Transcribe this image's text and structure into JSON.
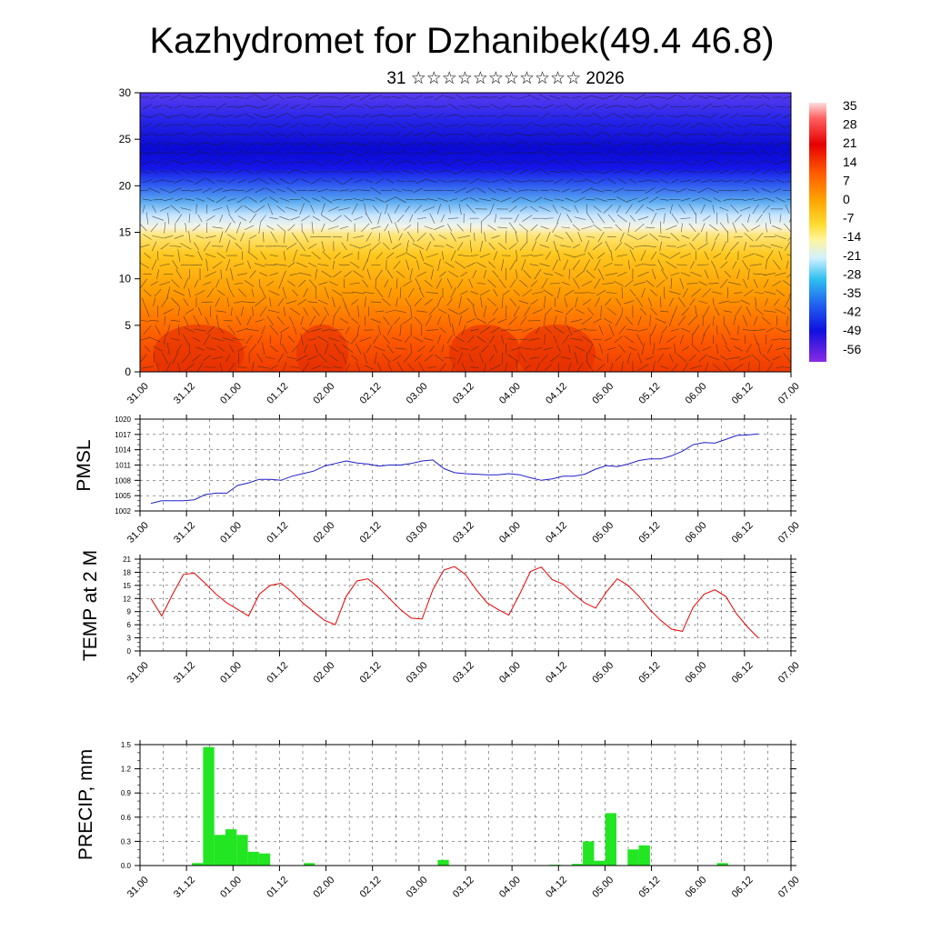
{
  "title": "Kazhydromet for Dzhanibek(49.4 46.8)",
  "subtitle": "31 ☆☆☆☆☆☆☆☆☆☆☆ 2026",
  "time_ticks": [
    "31.00",
    "31.12",
    "01.00",
    "01.12",
    "02.00",
    "02.12",
    "03.00",
    "03.12",
    "04.00",
    "04.12",
    "05.00",
    "05.12",
    "06.00",
    "06.12",
    "07.00"
  ],
  "colors": {
    "pmsl_line": "#1f1fc8",
    "temp_line": "#e60000",
    "precip_bar": "#22e622",
    "grid": "#000000"
  },
  "chart_data": [
    {
      "type": "heatmap",
      "name": "cross-section",
      "title": "",
      "xlabel": "time",
      "ylabel": "level",
      "ylim": [
        0,
        30
      ],
      "y_ticks": [
        0,
        5,
        10,
        15,
        20,
        25,
        30
      ],
      "colorbar": {
        "labels": [
          "35",
          "28",
          "21",
          "14",
          "7",
          "0",
          "-7",
          "-14",
          "-21",
          "-28",
          "-35",
          "-42",
          "-49",
          "-56"
        ],
        "range": [
          -60,
          38
        ]
      },
      "description_levels": [
        {
          "level": 0,
          "value": 24
        },
        {
          "level": 5,
          "value": 14
        },
        {
          "level": 10,
          "value": 4
        },
        {
          "level": 15,
          "value": -12
        },
        {
          "level": 20,
          "value": -38
        },
        {
          "level": 25,
          "value": -54
        },
        {
          "level": 30,
          "value": -52
        }
      ]
    },
    {
      "type": "line",
      "name": "PMSL",
      "ylabel": "PMSL",
      "ylim": [
        1002,
        1020
      ],
      "y_ticks": [
        1002,
        1005,
        1008,
        1011,
        1014,
        1017,
        1020
      ],
      "x": [
        0,
        1,
        2,
        3,
        4,
        5,
        6,
        7,
        8,
        9,
        10,
        11,
        12,
        13,
        14,
        15,
        16,
        17,
        18,
        19,
        20,
        21,
        22,
        23,
        24,
        25,
        26,
        27,
        28,
        29,
        30,
        31,
        32,
        33,
        34,
        35,
        36,
        37,
        38,
        39,
        40,
        41,
        42,
        43,
        44,
        45,
        46,
        47,
        48,
        49,
        50,
        51,
        52,
        53,
        54,
        55,
        56
      ],
      "values": [
        1003.5,
        1004,
        1004,
        1004,
        1004.2,
        1005.2,
        1005.5,
        1005.5,
        1007,
        1007.5,
        1008.2,
        1008.2,
        1008,
        1008.8,
        1009.3,
        1009.8,
        1010.8,
        1011.3,
        1011.8,
        1011.4,
        1011.2,
        1010.8,
        1011,
        1011,
        1011.3,
        1011.8,
        1012,
        1010.3,
        1009.5,
        1009.3,
        1009.2,
        1009.1,
        1009.1,
        1009.3,
        1009.1,
        1008.5,
        1008,
        1008.3,
        1008.8,
        1008.8,
        1009.2,
        1010.2,
        1010.9,
        1010.7,
        1011.2,
        1011.9,
        1012.2,
        1012.2,
        1012.8,
        1013.7,
        1015,
        1015.4,
        1015.3,
        1016,
        1016.8,
        1016.9,
        1017.1
      ]
    },
    {
      "type": "line",
      "name": "TEMP at 2 M",
      "ylabel": "TEMP at 2 M",
      "ylim": [
        0,
        21
      ],
      "y_ticks": [
        0,
        3,
        6,
        9,
        12,
        15,
        18,
        21
      ],
      "x": [
        0,
        1,
        2,
        3,
        4,
        5,
        6,
        7,
        8,
        9,
        10,
        11,
        12,
        13,
        14,
        15,
        16,
        17,
        18,
        19,
        20,
        21,
        22,
        23,
        24,
        25,
        26,
        27,
        28,
        29,
        30,
        31,
        32,
        33,
        34,
        35,
        36,
        37,
        38,
        39,
        40,
        41,
        42,
        43,
        44,
        45,
        46,
        47,
        48,
        49,
        50,
        51,
        52,
        53,
        54,
        55,
        56
      ],
      "values": [
        12,
        8,
        13,
        17.5,
        17.8,
        15.5,
        13,
        11,
        9.5,
        8,
        13,
        15,
        15.5,
        13.5,
        11,
        9,
        7,
        6,
        12.5,
        16,
        16.5,
        14.5,
        12,
        9.5,
        7.5,
        7.3,
        14,
        18.5,
        19.3,
        17.5,
        14,
        11,
        9.5,
        8.2,
        13,
        18.2,
        19.2,
        16.3,
        15.3,
        13,
        11,
        9.8,
        13.5,
        16.5,
        15,
        12.5,
        9.5,
        7,
        5,
        4.5,
        10,
        13,
        14,
        12.5,
        8.5,
        5.5,
        3
      ]
    },
    {
      "type": "bar",
      "name": "PRECIP, mm",
      "ylabel": "PRECIP, mm",
      "ylim": [
        0,
        1.5
      ],
      "y_ticks": [
        "0.0",
        "0.3",
        "0.6",
        "0.9",
        "1.2",
        "1.5"
      ],
      "x": [
        0,
        1,
        2,
        3,
        4,
        5,
        6,
        7,
        8,
        9,
        10,
        11,
        12,
        13,
        14,
        15,
        16,
        17,
        18,
        19,
        20,
        21,
        22,
        23,
        24,
        25,
        26,
        27,
        28,
        29,
        30,
        31,
        32,
        33,
        34,
        35,
        36,
        37,
        38,
        39,
        40,
        41,
        42,
        43,
        44,
        45,
        46,
        47,
        48,
        49,
        50,
        51,
        52,
        53,
        54,
        55
      ],
      "values": [
        0,
        0,
        0,
        0,
        0.03,
        1.47,
        0.38,
        0.45,
        0.38,
        0.17,
        0.15,
        0,
        0,
        0,
        0.03,
        0,
        0,
        0,
        0,
        0,
        0,
        0,
        0,
        0,
        0,
        0,
        0.07,
        0,
        0,
        0,
        0,
        0,
        0,
        0,
        0,
        0,
        0.01,
        0,
        0.02,
        0.3,
        0.06,
        0.65,
        0,
        0.2,
        0.25,
        0,
        0,
        0,
        0,
        0,
        0,
        0.03,
        0,
        0,
        0,
        0
      ]
    }
  ]
}
